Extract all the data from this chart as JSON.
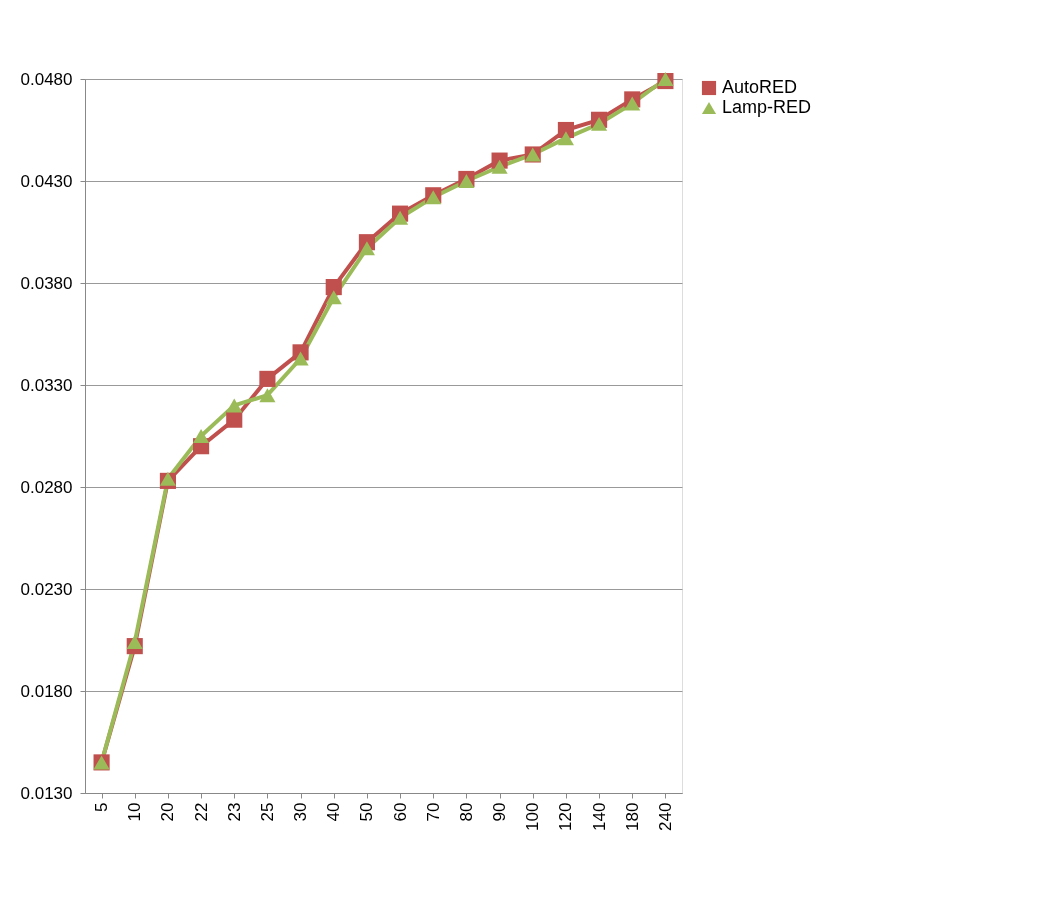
{
  "chart_data": {
    "type": "line",
    "categories": [
      "5",
      "10",
      "20",
      "22",
      "23",
      "25",
      "30",
      "40",
      "50",
      "60",
      "70",
      "80",
      "90",
      "100",
      "120",
      "140",
      "180",
      "240"
    ],
    "series": [
      {
        "name": "AutoRED",
        "color": "#c0504d",
        "marker": "square",
        "values": [
          0.0145,
          0.0202,
          0.0283,
          0.03,
          0.0313,
          0.0333,
          0.0346,
          0.0378,
          0.04,
          0.0414,
          0.0423,
          0.0431,
          0.044,
          0.0443,
          0.0455,
          0.046,
          0.047,
          0.0479
        ]
      },
      {
        "name": "Lamp-RED",
        "color": "#9bbb59",
        "marker": "triangle",
        "values": [
          0.0145,
          0.0204,
          0.0284,
          0.0305,
          0.032,
          0.0325,
          0.0343,
          0.0373,
          0.0397,
          0.0412,
          0.0422,
          0.043,
          0.0437,
          0.0443,
          0.0451,
          0.0458,
          0.0468,
          0.048
        ]
      }
    ],
    "ylim": [
      0.013,
      0.048
    ],
    "yticks": [
      {
        "value": 0.013,
        "label": "0.0130"
      },
      {
        "value": 0.018,
        "label": "0.0180"
      },
      {
        "value": 0.023,
        "label": "0.0230"
      },
      {
        "value": 0.028,
        "label": "0.0280"
      },
      {
        "value": 0.033,
        "label": "0.0330"
      },
      {
        "value": 0.038,
        "label": "0.0380"
      },
      {
        "value": 0.043,
        "label": "0.0430"
      },
      {
        "value": 0.048,
        "label": "0.0480"
      }
    ],
    "grid": "y",
    "legend": "right",
    "line_style": "solid"
  }
}
